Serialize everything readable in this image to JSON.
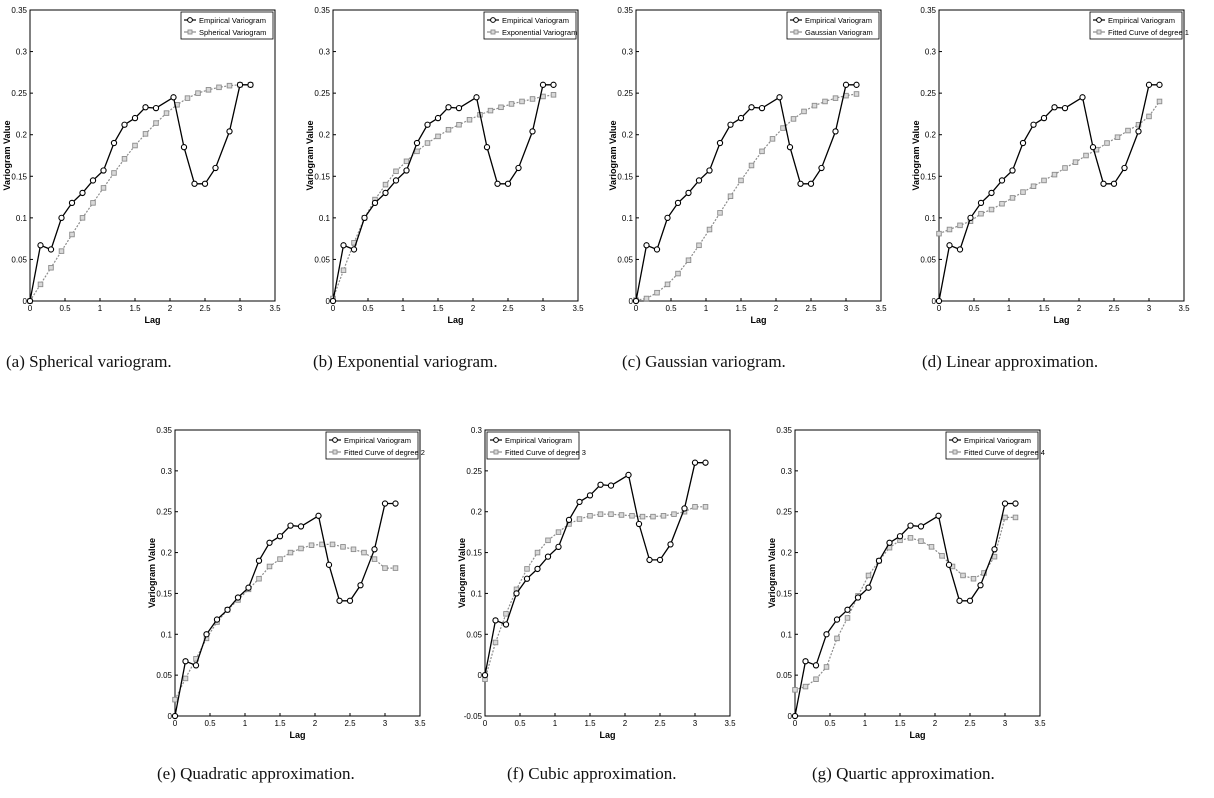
{
  "chart_data": [
    {
      "type": "line",
      "caption": "(a) Spherical variogram.",
      "xlabel": "Lag",
      "ylabel": "Variogram Value",
      "xlim": [
        0,
        3.5
      ],
      "ylim": [
        0,
        0.35
      ],
      "xticks": [
        "0",
        "0.5",
        "1",
        "1.5",
        "2",
        "2.5",
        "3",
        "3.5"
      ],
      "yticks": [
        "0",
        "0.05",
        "0.1",
        "0.15",
        "0.2",
        "0.25",
        "0.3",
        "0.35"
      ],
      "legend_position": "top-right",
      "series": [
        {
          "name": "Empirical Variogram",
          "x": [
            0,
            0.15,
            0.3,
            0.45,
            0.6,
            0.75,
            0.9,
            1.05,
            1.2,
            1.35,
            1.5,
            1.65,
            1.8,
            2.05,
            2.2,
            2.35,
            2.5,
            2.65,
            2.85,
            3.0,
            3.15
          ],
          "y": [
            0,
            0.067,
            0.062,
            0.1,
            0.118,
            0.13,
            0.145,
            0.157,
            0.19,
            0.212,
            0.22,
            0.233,
            0.232,
            0.245,
            0.185,
            0.141,
            0.141,
            0.16,
            0.204,
            0.26,
            0.26
          ]
        },
        {
          "name": "Spherical Variogram",
          "x": [
            0,
            0.15,
            0.3,
            0.45,
            0.6,
            0.75,
            0.9,
            1.05,
            1.2,
            1.35,
            1.5,
            1.65,
            1.8,
            1.95,
            2.1,
            2.25,
            2.4,
            2.55,
            2.7,
            2.85,
            3.0,
            3.15
          ],
          "y": [
            0,
            0.02,
            0.04,
            0.06,
            0.08,
            0.1,
            0.118,
            0.136,
            0.154,
            0.171,
            0.187,
            0.201,
            0.214,
            0.226,
            0.236,
            0.244,
            0.25,
            0.254,
            0.257,
            0.259,
            0.26,
            0.26
          ]
        }
      ]
    },
    {
      "type": "line",
      "caption": "(b) Exponential variogram.",
      "xlabel": "Lag",
      "ylabel": "Variogram Value",
      "xlim": [
        0,
        3.5
      ],
      "ylim": [
        0,
        0.35
      ],
      "xticks": [
        "0",
        "0.5",
        "1",
        "1.5",
        "2",
        "2.5",
        "3",
        "3.5"
      ],
      "yticks": [
        "0",
        "0.05",
        "0.1",
        "0.15",
        "0.2",
        "0.25",
        "0.3",
        "0.35"
      ],
      "legend_position": "top-right",
      "series": [
        {
          "name": "Empirical Variogram",
          "x": [
            0,
            0.15,
            0.3,
            0.45,
            0.6,
            0.75,
            0.9,
            1.05,
            1.2,
            1.35,
            1.5,
            1.65,
            1.8,
            2.05,
            2.2,
            2.35,
            2.5,
            2.65,
            2.85,
            3.0,
            3.15
          ],
          "y": [
            0,
            0.067,
            0.062,
            0.1,
            0.118,
            0.13,
            0.145,
            0.157,
            0.19,
            0.212,
            0.22,
            0.233,
            0.232,
            0.245,
            0.185,
            0.141,
            0.141,
            0.16,
            0.204,
            0.26,
            0.26
          ]
        },
        {
          "name": "Exponential Variogram",
          "x": [
            0,
            0.15,
            0.3,
            0.45,
            0.6,
            0.75,
            0.9,
            1.05,
            1.2,
            1.35,
            1.5,
            1.65,
            1.8,
            1.95,
            2.1,
            2.25,
            2.4,
            2.55,
            2.7,
            2.85,
            3.0,
            3.15
          ],
          "y": [
            0.003,
            0.037,
            0.07,
            0.1,
            0.122,
            0.14,
            0.156,
            0.168,
            0.18,
            0.19,
            0.198,
            0.206,
            0.212,
            0.218,
            0.224,
            0.229,
            0.233,
            0.237,
            0.24,
            0.243,
            0.246,
            0.248
          ]
        }
      ]
    },
    {
      "type": "line",
      "caption": "(c) Gaussian variogram.",
      "xlabel": "Lag",
      "ylabel": "Variogram Value",
      "xlim": [
        0,
        3.5
      ],
      "ylim": [
        0,
        0.35
      ],
      "xticks": [
        "0",
        "0.5",
        "1",
        "1.5",
        "2",
        "2.5",
        "3",
        "3.5"
      ],
      "yticks": [
        "0",
        "0.05",
        "0.1",
        "0.15",
        "0.2",
        "0.25",
        "0.3",
        "0.35"
      ],
      "legend_position": "top-right",
      "series": [
        {
          "name": "Empirical Variogram",
          "x": [
            0,
            0.15,
            0.3,
            0.45,
            0.6,
            0.75,
            0.9,
            1.05,
            1.2,
            1.35,
            1.5,
            1.65,
            1.8,
            2.05,
            2.2,
            2.35,
            2.5,
            2.65,
            2.85,
            3.0,
            3.15
          ],
          "y": [
            0,
            0.067,
            0.062,
            0.1,
            0.118,
            0.13,
            0.145,
            0.157,
            0.19,
            0.212,
            0.22,
            0.233,
            0.232,
            0.245,
            0.185,
            0.141,
            0.141,
            0.16,
            0.204,
            0.26,
            0.26
          ]
        },
        {
          "name": "Gaussian Variogram",
          "x": [
            0,
            0.15,
            0.3,
            0.45,
            0.6,
            0.75,
            0.9,
            1.05,
            1.2,
            1.35,
            1.5,
            1.65,
            1.8,
            1.95,
            2.1,
            2.25,
            2.4,
            2.55,
            2.7,
            2.85,
            3.0,
            3.15
          ],
          "y": [
            0.001,
            0.003,
            0.01,
            0.02,
            0.033,
            0.049,
            0.067,
            0.086,
            0.106,
            0.126,
            0.145,
            0.163,
            0.18,
            0.195,
            0.208,
            0.219,
            0.228,
            0.235,
            0.24,
            0.244,
            0.247,
            0.249
          ]
        }
      ]
    },
    {
      "type": "line",
      "caption": "(d) Linear approximation.",
      "xlabel": "Lag",
      "ylabel": "Variogram Value",
      "xlim": [
        0,
        3.5
      ],
      "ylim": [
        0,
        0.35
      ],
      "xticks": [
        "0",
        "0.5",
        "1",
        "1.5",
        "2",
        "2.5",
        "3",
        "3.5"
      ],
      "yticks": [
        "0",
        "0.05",
        "0.1",
        "0.15",
        "0.2",
        "0.25",
        "0.3",
        "0.35"
      ],
      "legend_position": "top-right",
      "series": [
        {
          "name": "Empirical Variogram",
          "x": [
            0,
            0.15,
            0.3,
            0.45,
            0.6,
            0.75,
            0.9,
            1.05,
            1.2,
            1.35,
            1.5,
            1.65,
            1.8,
            2.05,
            2.2,
            2.35,
            2.5,
            2.65,
            2.85,
            3.0,
            3.15
          ],
          "y": [
            0,
            0.067,
            0.062,
            0.1,
            0.118,
            0.13,
            0.145,
            0.157,
            0.19,
            0.212,
            0.22,
            0.233,
            0.232,
            0.245,
            0.185,
            0.141,
            0.141,
            0.16,
            0.204,
            0.26,
            0.26
          ]
        },
        {
          "name": "Fitted Curve of degree 1",
          "x": [
            0,
            0.15,
            0.3,
            0.45,
            0.6,
            0.75,
            0.9,
            1.05,
            1.2,
            1.35,
            1.5,
            1.65,
            1.8,
            1.95,
            2.1,
            2.25,
            2.4,
            2.55,
            2.7,
            2.85,
            3.0,
            3.15
          ],
          "y": [
            0.081,
            0.086,
            0.091,
            0.096,
            0.105,
            0.11,
            0.117,
            0.124,
            0.131,
            0.138,
            0.145,
            0.152,
            0.16,
            0.167,
            0.175,
            0.182,
            0.19,
            0.197,
            0.205,
            0.212,
            0.222,
            0.24
          ]
        }
      ]
    },
    {
      "type": "line",
      "caption": "(e) Quadratic approximation.",
      "xlabel": "Lag",
      "ylabel": "Variogram Value",
      "xlim": [
        0,
        3.5
      ],
      "ylim": [
        0,
        0.35
      ],
      "xticks": [
        "0",
        "0.5",
        "1",
        "1.5",
        "2",
        "2.5",
        "3",
        "3.5"
      ],
      "yticks": [
        "0",
        "0.05",
        "0.1",
        "0.15",
        "0.2",
        "0.25",
        "0.3",
        "0.35"
      ],
      "legend_position": "top-right",
      "series": [
        {
          "name": "Empirical Variogram",
          "x": [
            0,
            0.15,
            0.3,
            0.45,
            0.6,
            0.75,
            0.9,
            1.05,
            1.2,
            1.35,
            1.5,
            1.65,
            1.8,
            2.05,
            2.2,
            2.35,
            2.5,
            2.65,
            2.85,
            3.0,
            3.15
          ],
          "y": [
            0,
            0.067,
            0.062,
            0.1,
            0.118,
            0.13,
            0.145,
            0.157,
            0.19,
            0.212,
            0.22,
            0.233,
            0.232,
            0.245,
            0.185,
            0.141,
            0.141,
            0.16,
            0.204,
            0.26,
            0.26
          ]
        },
        {
          "name": "Fitted Curve of degree 2",
          "x": [
            0,
            0.15,
            0.3,
            0.45,
            0.6,
            0.75,
            0.9,
            1.05,
            1.2,
            1.35,
            1.5,
            1.65,
            1.8,
            1.95,
            2.1,
            2.25,
            2.4,
            2.55,
            2.7,
            2.85,
            3.0,
            3.15
          ],
          "y": [
            0.02,
            0.046,
            0.07,
            0.095,
            0.115,
            0.13,
            0.142,
            0.155,
            0.168,
            0.183,
            0.192,
            0.2,
            0.205,
            0.209,
            0.21,
            0.21,
            0.207,
            0.204,
            0.2,
            0.192,
            0.181,
            0.181
          ]
        }
      ]
    },
    {
      "type": "line",
      "caption": "(f) Cubic approximation.",
      "xlabel": "Lag",
      "ylabel": "Variogram Value",
      "xlim": [
        0,
        3.5
      ],
      "ylim": [
        -0.05,
        0.3
      ],
      "xticks": [
        "0",
        "0.5",
        "1",
        "1.5",
        "2",
        "2.5",
        "3",
        "3.5"
      ],
      "yticks": [
        "-0.05",
        "0",
        "0.05",
        "0.1",
        "0.15",
        "0.2",
        "0.25",
        "0.3"
      ],
      "legend_position": "top-left",
      "series": [
        {
          "name": "Empirical Variogram",
          "x": [
            0,
            0.15,
            0.3,
            0.45,
            0.6,
            0.75,
            0.9,
            1.05,
            1.2,
            1.35,
            1.5,
            1.65,
            1.8,
            2.05,
            2.2,
            2.35,
            2.5,
            2.65,
            2.85,
            3.0,
            3.15
          ],
          "y": [
            0,
            0.067,
            0.062,
            0.1,
            0.118,
            0.13,
            0.145,
            0.157,
            0.19,
            0.212,
            0.22,
            0.233,
            0.232,
            0.245,
            0.185,
            0.141,
            0.141,
            0.16,
            0.204,
            0.26,
            0.26
          ]
        },
        {
          "name": "Fitted Curve of degree 3",
          "x": [
            0,
            0.15,
            0.3,
            0.45,
            0.6,
            0.75,
            0.9,
            1.05,
            1.2,
            1.35,
            1.5,
            1.65,
            1.8,
            1.95,
            2.1,
            2.25,
            2.4,
            2.55,
            2.7,
            2.85,
            3.0,
            3.15
          ],
          "y": [
            -0.005,
            0.04,
            0.075,
            0.105,
            0.13,
            0.15,
            0.165,
            0.175,
            0.185,
            0.191,
            0.195,
            0.197,
            0.197,
            0.196,
            0.195,
            0.194,
            0.194,
            0.195,
            0.197,
            0.2,
            0.206,
            0.206
          ]
        }
      ]
    },
    {
      "type": "line",
      "caption": "(g) Quartic approximation.",
      "xlabel": "Lag",
      "ylabel": "Variogram Value",
      "xlim": [
        0,
        3.5
      ],
      "ylim": [
        0,
        0.35
      ],
      "xticks": [
        "0",
        "0.5",
        "1",
        "1.5",
        "2",
        "2.5",
        "3",
        "3.5"
      ],
      "yticks": [
        "0",
        "0.05",
        "0.1",
        "0.15",
        "0.2",
        "0.25",
        "0.3",
        "0.35"
      ],
      "legend_position": "top-right",
      "series": [
        {
          "name": "Empirical Variogram",
          "x": [
            0,
            0.15,
            0.3,
            0.45,
            0.6,
            0.75,
            0.9,
            1.05,
            1.2,
            1.35,
            1.5,
            1.65,
            1.8,
            2.05,
            2.2,
            2.35,
            2.5,
            2.65,
            2.85,
            3.0,
            3.15
          ],
          "y": [
            0,
            0.067,
            0.062,
            0.1,
            0.118,
            0.13,
            0.145,
            0.157,
            0.19,
            0.212,
            0.22,
            0.233,
            0.232,
            0.245,
            0.185,
            0.141,
            0.141,
            0.16,
            0.204,
            0.26,
            0.26
          ]
        },
        {
          "name": "Fitted Curve of degree 4",
          "x": [
            0,
            0.15,
            0.3,
            0.45,
            0.6,
            0.75,
            0.9,
            1.05,
            1.2,
            1.35,
            1.5,
            1.65,
            1.8,
            1.95,
            2.1,
            2.25,
            2.4,
            2.55,
            2.7,
            2.85,
            3.0,
            3.15
          ],
          "y": [
            0.032,
            0.036,
            0.045,
            0.06,
            0.095,
            0.12,
            0.147,
            0.172,
            0.19,
            0.206,
            0.215,
            0.218,
            0.214,
            0.207,
            0.196,
            0.183,
            0.172,
            0.168,
            0.175,
            0.195,
            0.243,
            0.243
          ]
        }
      ]
    }
  ],
  "colors": {
    "empirical": "#000000",
    "fitted": "#8c8c8c",
    "axis": "#000000",
    "fitted_fill": "#d9d9d9"
  }
}
